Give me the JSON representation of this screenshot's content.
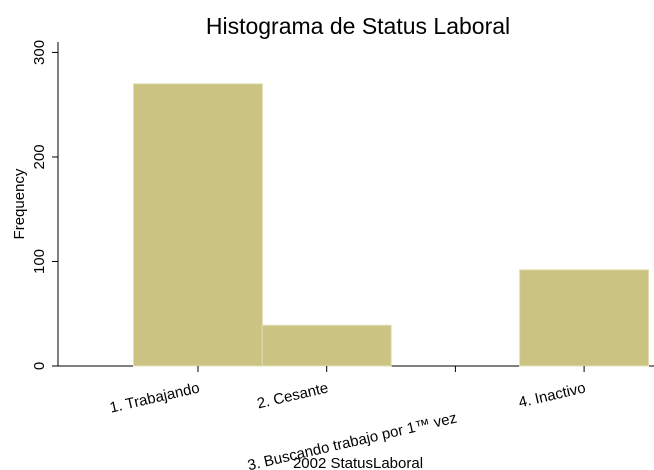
{
  "chart_data": {
    "type": "bar",
    "title": "Histograma de Status Laboral",
    "x_label": "2002 StatusLaboral",
    "y_label": "Frequency",
    "categories": [
      "1. Trabajando",
      "2. Cesante",
      "3. Buscando trabajo por 1™ vez",
      "4. Inactivo"
    ],
    "values": [
      270,
      39,
      0,
      92
    ],
    "color": "#cbc381",
    "ylim": [
      0,
      310
    ],
    "yticks": [
      0,
      100,
      200,
      300
    ],
    "grid": false
  }
}
